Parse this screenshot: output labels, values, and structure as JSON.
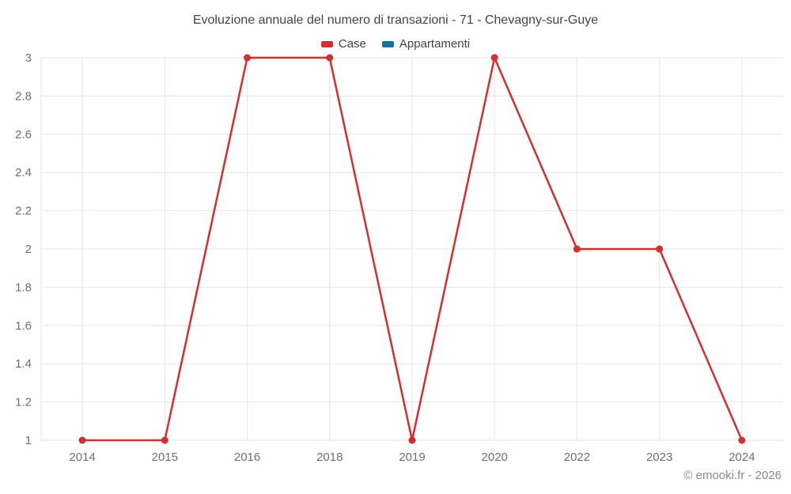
{
  "chart_data": {
    "type": "line",
    "title": "Evoluzione annuale del numero di transazioni - 71 - Chevagny-sur-Guye",
    "categories": [
      "2014",
      "2015",
      "2016",
      "2018",
      "2019",
      "2020",
      "2022",
      "2023",
      "2024"
    ],
    "series": [
      {
        "name": "Case",
        "color": "#d32f2f",
        "values": [
          1,
          1,
          3,
          3,
          1,
          3,
          2,
          2,
          1
        ]
      },
      {
        "name": "Appartamenti",
        "color": "#1571a3",
        "values": []
      }
    ],
    "ylim": [
      1,
      3
    ],
    "yticks": [
      "1",
      "1.2",
      "1.4",
      "1.6",
      "1.8",
      "2",
      "2.2",
      "2.4",
      "2.6",
      "2.8",
      "3"
    ],
    "xlabel": "",
    "ylabel": "",
    "grid": true,
    "legend_position": "top"
  },
  "colors": {
    "grid": "#e6e6e6",
    "axis_label": "#697076",
    "title": "#3d464d",
    "footer": "#848b91"
  },
  "footer": {
    "credit": "© emooki.fr - 2026"
  }
}
